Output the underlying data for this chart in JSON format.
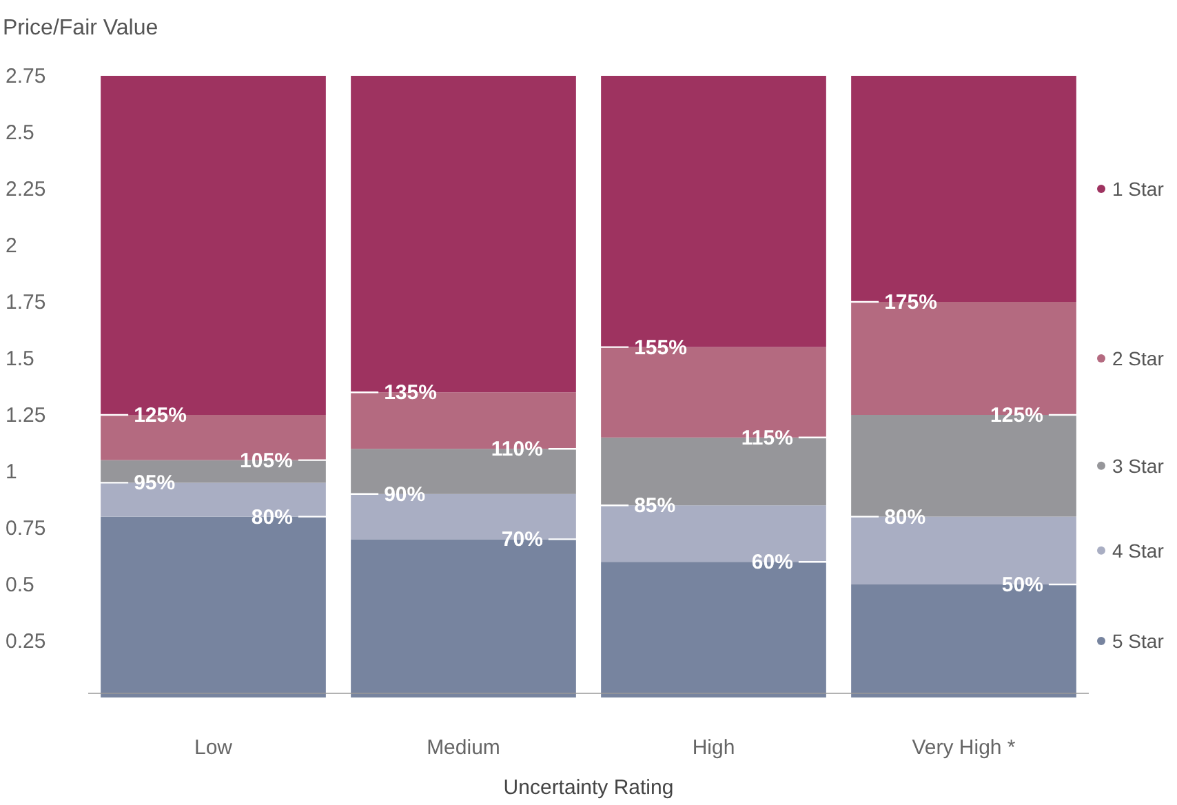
{
  "chart_data": {
    "type": "bar",
    "stacked": true,
    "ylabel": "Price/Fair Value",
    "xlabel": "Uncertainty Rating",
    "categories": [
      "Low",
      "Medium",
      "High",
      "Very High *"
    ],
    "series": [
      {
        "name": "5 Star",
        "color": "#77849f",
        "values": [
          0.8,
          0.7,
          0.6,
          0.5
        ]
      },
      {
        "name": "4 Star",
        "color": "#a9aec3",
        "values": [
          0.15,
          0.2,
          0.25,
          0.3
        ]
      },
      {
        "name": "3 Star",
        "color": "#96969a",
        "values": [
          0.1,
          0.2,
          0.3,
          0.45
        ]
      },
      {
        "name": "2 Star",
        "color": "#b46a80",
        "values": [
          0.2,
          0.25,
          0.4,
          0.5
        ]
      },
      {
        "name": "1 Star",
        "color": "#9e3360",
        "values": [
          1.5,
          1.4,
          1.2,
          1.0
        ]
      }
    ],
    "ylim": [
      0,
      2.75
    ],
    "yticks": [
      0.25,
      0.5,
      0.75,
      1,
      1.25,
      1.5,
      1.75,
      2,
      2.25,
      2.5,
      2.75
    ],
    "grid": false,
    "legend": "right",
    "annotations": [
      {
        "text": "125%",
        "x": "Low",
        "y": 1.25
      },
      {
        "text": "105%",
        "x": "Low",
        "y": 1.05
      },
      {
        "text": "95%",
        "x": "Low",
        "y": 0.95
      },
      {
        "text": "80%",
        "x": "Low",
        "y": 0.8
      },
      {
        "text": "135%",
        "x": "Medium",
        "y": 1.35
      },
      {
        "text": "110%",
        "x": "Medium",
        "y": 1.1
      },
      {
        "text": "90%",
        "x": "Medium",
        "y": 0.9
      },
      {
        "text": "70%",
        "x": "Medium",
        "y": 0.7
      },
      {
        "text": "155%",
        "x": "High",
        "y": 1.55
      },
      {
        "text": "115%",
        "x": "High",
        "y": 1.15
      },
      {
        "text": "85%",
        "x": "High",
        "y": 0.85
      },
      {
        "text": "60%",
        "x": "High",
        "y": 0.6
      },
      {
        "text": "175%",
        "x": "Very High *",
        "y": 1.75
      },
      {
        "text": "125%",
        "x": "Very High *",
        "y": 1.25
      },
      {
        "text": "80%",
        "x": "Very High *",
        "y": 0.8
      },
      {
        "text": "50%",
        "x": "Very High *",
        "y": 0.5
      }
    ]
  }
}
